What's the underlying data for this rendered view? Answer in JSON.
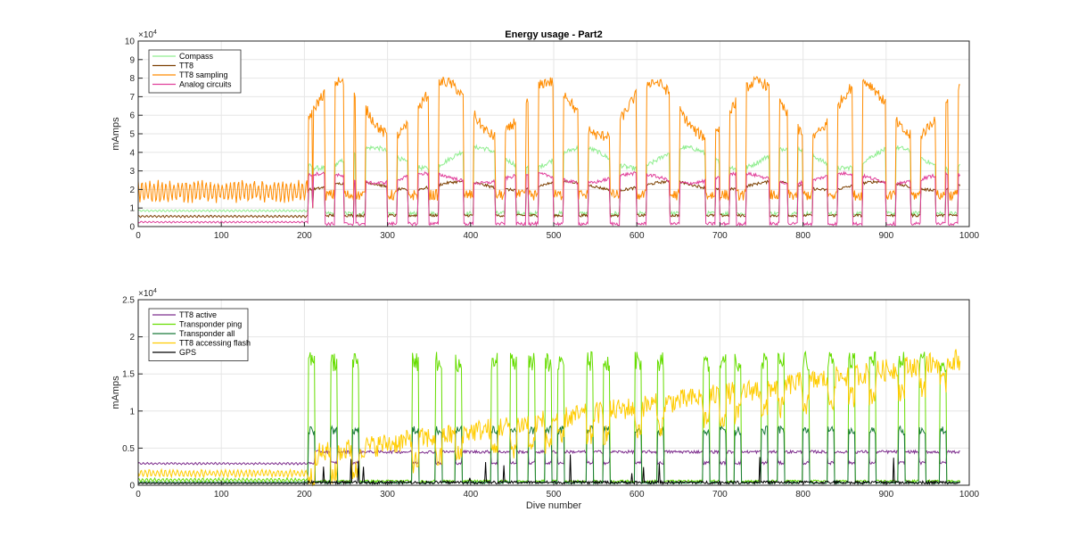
{
  "chart_data": [
    {
      "type": "line",
      "title": "Energy usage - Part2",
      "xlabel": "",
      "ylabel": "mAmps",
      "exponent_label": "×10",
      "exponent": "4",
      "xlim": [
        0,
        1000
      ],
      "ylim": [
        0,
        100000
      ],
      "xticks": [
        0,
        100,
        200,
        300,
        400,
        500,
        600,
        700,
        800,
        900,
        1000
      ],
      "yticks": [
        0,
        10000,
        20000,
        30000,
        40000,
        50000,
        60000,
        70000,
        80000,
        90000,
        100000
      ],
      "ytick_labels": [
        "0",
        "1",
        "2",
        "3",
        "4",
        "5",
        "6",
        "7",
        "8",
        "9",
        "10"
      ],
      "grid": true,
      "legend_location": "top-left",
      "series": [
        {
          "name": "Compass",
          "color": "#90ee90",
          "profile": {
            "pre_base": 8000,
            "pre_amp": 1000,
            "low": 7000,
            "high": 37000,
            "noise": 2500,
            "high_var": [
              0.85,
              1.15
            ]
          }
        },
        {
          "name": "TT8",
          "color": "#7b3f00",
          "profile": {
            "pre_base": 5000,
            "pre_amp": 1000,
            "low": 6000,
            "high": 22000,
            "noise": 1500,
            "high_var": [
              0.9,
              1.1
            ]
          }
        },
        {
          "name": "TT8 sampling",
          "color": "#ff8c00",
          "profile": {
            "pre_base": 14000,
            "pre_amp": 10000,
            "low": 17000,
            "high": 65000,
            "noise": 6000,
            "high_var": [
              0.75,
              1.2
            ]
          }
        },
        {
          "name": "Analog circuits",
          "color": "#e0409b",
          "profile": {
            "pre_base": 2000,
            "pre_amp": 800,
            "low": 1500,
            "high": 26000,
            "noise": 1800,
            "high_var": [
              0.9,
              1.1
            ]
          }
        }
      ],
      "dips": [
        [
          210,
          10000
        ]
      ]
    },
    {
      "type": "line",
      "title": "",
      "xlabel": "Dive number",
      "ylabel": "mAmps",
      "exponent_label": "×10",
      "exponent": "4",
      "xlim": [
        0,
        1000
      ],
      "ylim": [
        0,
        25000
      ],
      "xticks": [
        0,
        100,
        200,
        300,
        400,
        500,
        600,
        700,
        800,
        900,
        1000
      ],
      "yticks": [
        0,
        5000,
        10000,
        15000,
        20000,
        25000
      ],
      "ytick_labels": [
        "0",
        "0.5",
        "1",
        "1.5",
        "2",
        "2.5"
      ],
      "grid": true,
      "legend_location": "top-left",
      "series": [
        {
          "name": "TT8 active",
          "color": "#7e2f8e",
          "profile": {
            "kind": "flat",
            "pre_base": 2800,
            "pre_amp": 300,
            "low": 3000,
            "high": 4500,
            "noise": 400
          }
        },
        {
          "name": "Transponder ping",
          "color": "#66dd00",
          "profile": {
            "kind": "spike",
            "pre_base": 500,
            "pre_amp": 500,
            "peak": 18000,
            "noise": 300
          }
        },
        {
          "name": "Transponder all",
          "color": "#1a7a3a",
          "profile": {
            "kind": "spike",
            "pre_base": 300,
            "pre_amp": 200,
            "peak": 8000,
            "noise": 300
          }
        },
        {
          "name": "TT8 accessing flash",
          "color": "#ffcc00",
          "profile": {
            "kind": "rising",
            "pre_base": 1200,
            "pre_amp": 1000,
            "start": 4000,
            "end": 17000,
            "noise": 1500
          }
        },
        {
          "name": "GPS",
          "color": "#000000",
          "profile": {
            "kind": "noise",
            "pre_base": 200,
            "pre_amp": 150,
            "low": 300,
            "high": 600,
            "noise": 400
          }
        }
      ],
      "cycle_starts": [
        205,
        232,
        258,
        330,
        358,
        382,
        425,
        448,
        470,
        490,
        505,
        540,
        560,
        598,
        625,
        680,
        700,
        718,
        750,
        770,
        800,
        830,
        855,
        880,
        915,
        940,
        965
      ]
    }
  ]
}
